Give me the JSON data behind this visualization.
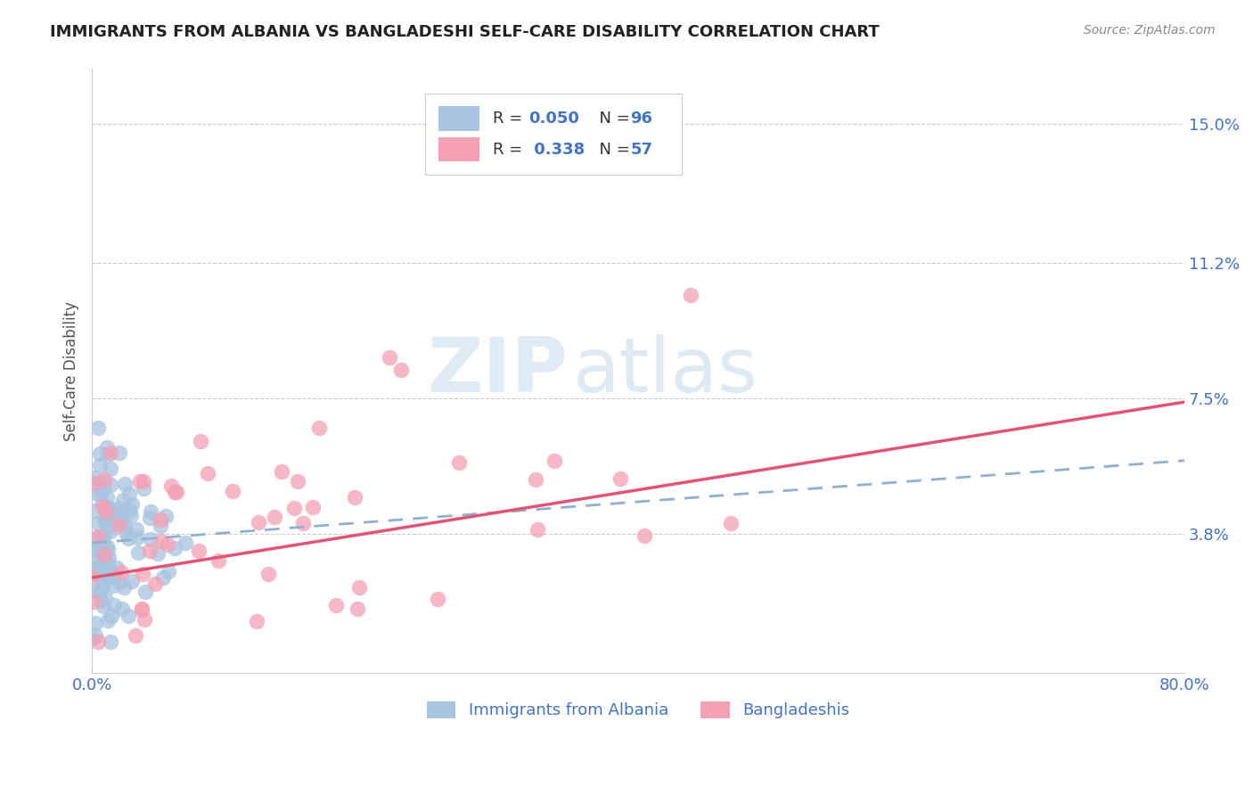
{
  "title": "IMMIGRANTS FROM ALBANIA VS BANGLADESHI SELF-CARE DISABILITY CORRELATION CHART",
  "source_text": "Source: ZipAtlas.com",
  "ylabel": "Self-Care Disability",
  "legend_label_1": "Immigrants from Albania",
  "legend_label_2": "Bangladeshis",
  "r1": 0.05,
  "n1": 96,
  "r2": 0.338,
  "n2": 57,
  "color1": "#a8c4e0",
  "color2": "#f4a0b5",
  "line_color1": "#90b0d0",
  "line_color2": "#e05575",
  "xlim": [
    0.0,
    0.8
  ],
  "ylim": [
    0.0,
    0.165
  ],
  "yticks": [
    0.038,
    0.075,
    0.112,
    0.15
  ],
  "ytick_labels": [
    "3.8%",
    "7.5%",
    "11.2%",
    "15.0%"
  ],
  "xticks": [
    0.0,
    0.2,
    0.4,
    0.6,
    0.8
  ],
  "xtick_labels": [
    "0.0%",
    "",
    "",
    "",
    "80.0%"
  ],
  "watermark_zip": "ZIP",
  "watermark_atlas": "atlas",
  "background_color": "#ffffff",
  "grid_color": "#cccccc",
  "title_color": "#222222",
  "axis_label_color": "#555555",
  "tick_label_color": "#4472c4",
  "legend_text_color": "#333333",
  "source_color": "#888888",
  "trend1_x0": 0.0,
  "trend1_y0": 0.0355,
  "trend1_x1": 0.8,
  "trend1_y1": 0.058,
  "trend2_x0": 0.0,
  "trend2_y0": 0.026,
  "trend2_x1": 0.8,
  "trend2_y1": 0.074
}
